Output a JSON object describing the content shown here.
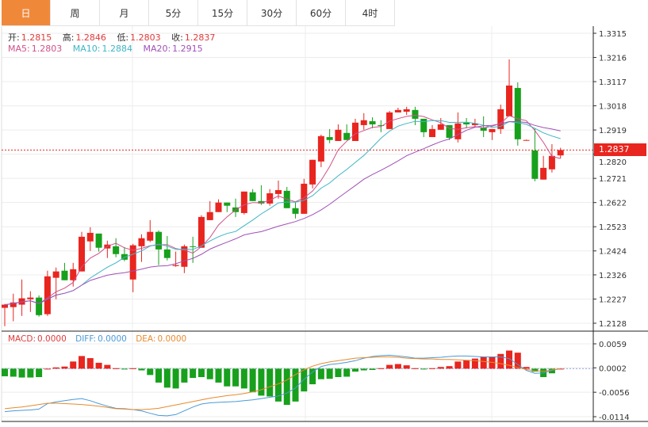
{
  "tabs": [
    {
      "label": "日",
      "active": true
    },
    {
      "label": "周"
    },
    {
      "label": "月"
    },
    {
      "label": "5分"
    },
    {
      "label": "15分"
    },
    {
      "label": "30分"
    },
    {
      "label": "60分"
    },
    {
      "label": "4时"
    }
  ],
  "legend": {
    "open_label": "开:",
    "open": "1.2815",
    "high_label": "高:",
    "high": "1.2846",
    "low_label": "低:",
    "low": "1.2803",
    "close_label": "收:",
    "close": "1.2837",
    "ma5_label": "MA5:",
    "ma5": "1.2803",
    "ma10_label": "MA10:",
    "ma10": "1.2884",
    "ma20_label": "MA20:",
    "ma20": "1.2915"
  },
  "macd_legend": {
    "macd_label": "MACD:",
    "macd": "0.0000",
    "diff_label": "DIFF:",
    "diff": "0.0000",
    "dea_label": "DEA:",
    "dea": "0.0000"
  },
  "current_price": "1.2837",
  "colors": {
    "up": "#e8251f",
    "down": "#17a01c",
    "active_tab": "#f0883a",
    "ma5": "#d0508a",
    "ma10": "#3db5c5",
    "ma20": "#a050b8",
    "diff": "#4a9ad6",
    "dea": "#e88a2e",
    "macd": "#e03a3a"
  },
  "chart_data": [
    {
      "type": "candlestick",
      "y_ticks": [
        "1.3315",
        "1.3216",
        "1.3117",
        "1.3018",
        "1.2919",
        "1.2820",
        "1.2721",
        "1.2622",
        "1.2523",
        "1.2424",
        "1.2326",
        "1.2227",
        "1.2128"
      ],
      "ylim": [
        1.2128,
        1.3315
      ],
      "grid": true,
      "ohlc": [
        [
          1.2191,
          1.2207,
          1.2116,
          1.2204
        ],
        [
          1.2194,
          1.2249,
          1.2136,
          1.2213
        ],
        [
          1.2204,
          1.2307,
          1.2158,
          1.223
        ],
        [
          1.2226,
          1.2259,
          1.2174,
          1.2233
        ],
        [
          1.2233,
          1.2242,
          1.2155,
          1.2161
        ],
        [
          1.2165,
          1.2343,
          1.2158,
          1.232
        ],
        [
          1.2314,
          1.2356,
          1.2226,
          1.234
        ],
        [
          1.2343,
          1.2375,
          1.2304,
          1.2304
        ],
        [
          1.2304,
          1.2375,
          1.2278,
          1.2349
        ],
        [
          1.234,
          1.2502,
          1.234,
          1.2482
        ],
        [
          1.2463,
          1.2521,
          1.2424,
          1.2498
        ],
        [
          1.2495,
          1.2495,
          1.2421,
          1.2437
        ],
        [
          1.2434,
          1.2466,
          1.2395,
          1.245
        ],
        [
          1.2443,
          1.2476,
          1.2398,
          1.2411
        ],
        [
          1.2411,
          1.244,
          1.2382,
          1.2388
        ],
        [
          1.2307,
          1.2453,
          1.2255,
          1.2447
        ],
        [
          1.2443,
          1.2492,
          1.2379,
          1.2476
        ],
        [
          1.2466,
          1.255,
          1.246,
          1.2502
        ],
        [
          1.2502,
          1.2508,
          1.2366,
          1.243
        ],
        [
          1.243,
          1.2485,
          1.2385,
          1.2395
        ],
        [
          1.2362,
          1.2421,
          1.2359,
          1.2366
        ],
        [
          1.2359,
          1.245,
          1.2333,
          1.2443
        ],
        [
          1.2443,
          1.2482,
          1.2375,
          1.244
        ],
        [
          1.2437,
          1.257,
          1.2437,
          1.2563
        ],
        [
          1.255,
          1.2628,
          1.255,
          1.2583
        ],
        [
          1.2583,
          1.2635,
          1.2583,
          1.2622
        ],
        [
          1.2622,
          1.2622,
          1.2583,
          1.2609
        ],
        [
          1.2602,
          1.2638,
          1.2563,
          1.2583
        ],
        [
          1.2579,
          1.2667,
          1.2573,
          1.2667
        ],
        [
          1.2664,
          1.2677,
          1.2628,
          1.2628
        ],
        [
          1.2628,
          1.2693,
          1.2612,
          1.2618
        ],
        [
          1.2618,
          1.2677,
          1.2609,
          1.266
        ],
        [
          1.2657,
          1.2712,
          1.2638,
          1.2673
        ],
        [
          1.267,
          1.2686,
          1.2599,
          1.2599
        ],
        [
          1.2599,
          1.2622,
          1.2557,
          1.2576
        ],
        [
          1.2576,
          1.2719,
          1.2576,
          1.2699
        ],
        [
          1.2696,
          1.2797,
          1.268,
          1.2797
        ],
        [
          1.279,
          1.29,
          1.2767,
          1.2894
        ],
        [
          1.289,
          1.2923,
          1.2865,
          1.2878
        ],
        [
          1.2874,
          1.2942,
          1.2874,
          1.292
        ],
        [
          1.2907,
          1.2942,
          1.2878,
          1.2878
        ],
        [
          1.2874,
          1.2965,
          1.2874,
          1.2949
        ],
        [
          1.2939,
          1.2988,
          1.292,
          1.2959
        ],
        [
          1.2955,
          1.2971,
          1.2926,
          1.2942
        ],
        [
          1.2939,
          1.2959,
          1.291,
          1.2936
        ],
        [
          1.2923,
          1.2997,
          1.2923,
          1.2991
        ],
        [
          1.2991,
          1.301,
          1.2991,
          1.3001
        ],
        [
          1.2994,
          1.3014,
          1.2981,
          1.3004
        ],
        [
          1.3001,
          1.3014,
          1.2939,
          1.2965
        ],
        [
          1.2965,
          1.2965,
          1.289,
          1.291
        ],
        [
          1.289,
          1.2939,
          1.289,
          1.2923
        ],
        [
          1.292,
          1.2968,
          1.292,
          1.2942
        ],
        [
          1.2939,
          1.2939,
          1.2878,
          1.2887
        ],
        [
          1.2881,
          1.2991,
          1.2868,
          1.2946
        ],
        [
          1.2949,
          1.2968,
          1.2926,
          1.2942
        ],
        [
          1.2939,
          1.2965,
          1.2929,
          1.2946
        ],
        [
          1.2929,
          1.2975,
          1.289,
          1.2916
        ],
        [
          1.291,
          1.2923,
          1.2878,
          1.2923
        ],
        [
          1.2923,
          1.3023,
          1.2903,
          1.3004
        ],
        [
          1.2975,
          1.3208,
          1.2975,
          1.3101
        ],
        [
          1.3091,
          1.3114,
          1.2855,
          1.2881
        ],
        [
          1.2877,
          1.288,
          1.2876,
          1.2878
        ],
        [
          1.2835,
          1.2926,
          1.2709,
          1.2719
        ],
        [
          1.2716,
          1.2813,
          1.2716,
          1.2764
        ],
        [
          1.2758,
          1.2861,
          1.2745,
          1.2813
        ],
        [
          1.2815,
          1.2846,
          1.2803,
          1.2837
        ]
      ],
      "moving_averages": [
        {
          "name": "MA5",
          "period": 5
        },
        {
          "name": "MA10",
          "period": 10
        },
        {
          "name": "MA20",
          "period": 20
        }
      ]
    },
    {
      "type": "bar+line",
      "y_ticks": [
        "0.0059",
        "0.0002",
        "-0.0056",
        "-0.0114"
      ],
      "ylim": [
        -0.0114,
        0.0059
      ],
      "macd": [
        -0.0018,
        -0.0019,
        -0.0021,
        -0.0021,
        -0.002,
        0.0,
        0.0003,
        0.0005,
        0.0017,
        0.003,
        0.0025,
        0.0014,
        0.0009,
        0.0001,
        -0.0001,
        0.0001,
        -0.0004,
        -0.0015,
        -0.0033,
        -0.0045,
        -0.0047,
        -0.0033,
        -0.0022,
        -0.002,
        -0.0025,
        -0.0033,
        -0.0042,
        -0.0042,
        -0.0047,
        -0.0056,
        -0.0064,
        -0.0066,
        -0.0078,
        -0.0086,
        -0.0078,
        -0.0054,
        -0.0037,
        -0.0025,
        -0.0024,
        -0.002,
        -0.0019,
        -0.0007,
        -0.0004,
        -0.0003,
        0.0001,
        0.0009,
        0.0011,
        0.0008,
        0.0001,
        -0.0001,
        0.0001,
        0.0004,
        0.0006,
        0.0017,
        0.002,
        0.0024,
        0.0028,
        0.0028,
        0.0035,
        0.0043,
        0.0038,
        0.0004,
        -0.0007,
        -0.002,
        -0.0011,
        0.0
      ],
      "diff": [
        -0.0102,
        -0.01,
        -0.0099,
        -0.0098,
        -0.0096,
        -0.0083,
        -0.0079,
        -0.0076,
        -0.0073,
        -0.0071,
        -0.0076,
        -0.0083,
        -0.0089,
        -0.0094,
        -0.0095,
        -0.0097,
        -0.01,
        -0.0106,
        -0.0111,
        -0.0112,
        -0.0109,
        -0.01,
        -0.0091,
        -0.0084,
        -0.0081,
        -0.008,
        -0.0079,
        -0.0078,
        -0.0076,
        -0.0074,
        -0.0071,
        -0.0068,
        -0.0065,
        -0.0058,
        -0.0046,
        -0.0025,
        -0.0008,
        0.0005,
        0.001,
        0.0012,
        0.0015,
        0.0019,
        0.0025,
        0.0029,
        0.0031,
        0.0032,
        0.003,
        0.0028,
        0.0025,
        0.0025,
        0.0026,
        0.0027,
        0.0029,
        0.003,
        0.003,
        0.0029,
        0.0028,
        0.0028,
        0.0028,
        0.0024,
        0.001,
        -0.0004,
        -0.0011,
        -0.001,
        -0.0004,
        0.0
      ],
      "dea": [
        -0.0095,
        -0.0093,
        -0.0091,
        -0.0088,
        -0.0085,
        -0.0082,
        -0.0082,
        -0.0083,
        -0.0084,
        -0.0085,
        -0.0087,
        -0.0089,
        -0.0092,
        -0.0095,
        -0.0096,
        -0.0097,
        -0.0097,
        -0.0096,
        -0.0094,
        -0.009,
        -0.0086,
        -0.0082,
        -0.0078,
        -0.0074,
        -0.007,
        -0.0067,
        -0.0064,
        -0.0062,
        -0.0059,
        -0.0055,
        -0.005,
        -0.0043,
        -0.0036,
        -0.0027,
        -0.0014,
        -0.0003,
        0.0006,
        0.0012,
        0.0016,
        0.0019,
        0.0022,
        0.0025,
        0.0026,
        0.0027,
        0.0028,
        0.0028,
        0.0027,
        0.0025,
        0.0024,
        0.0023,
        0.0023,
        0.0022,
        0.0022,
        0.0021,
        0.002,
        0.0019,
        0.0017,
        0.0015,
        0.0012,
        0.0008,
        0.0003,
        -0.0002,
        -0.0005,
        -0.0006,
        -0.0003,
        0.0
      ]
    }
  ]
}
